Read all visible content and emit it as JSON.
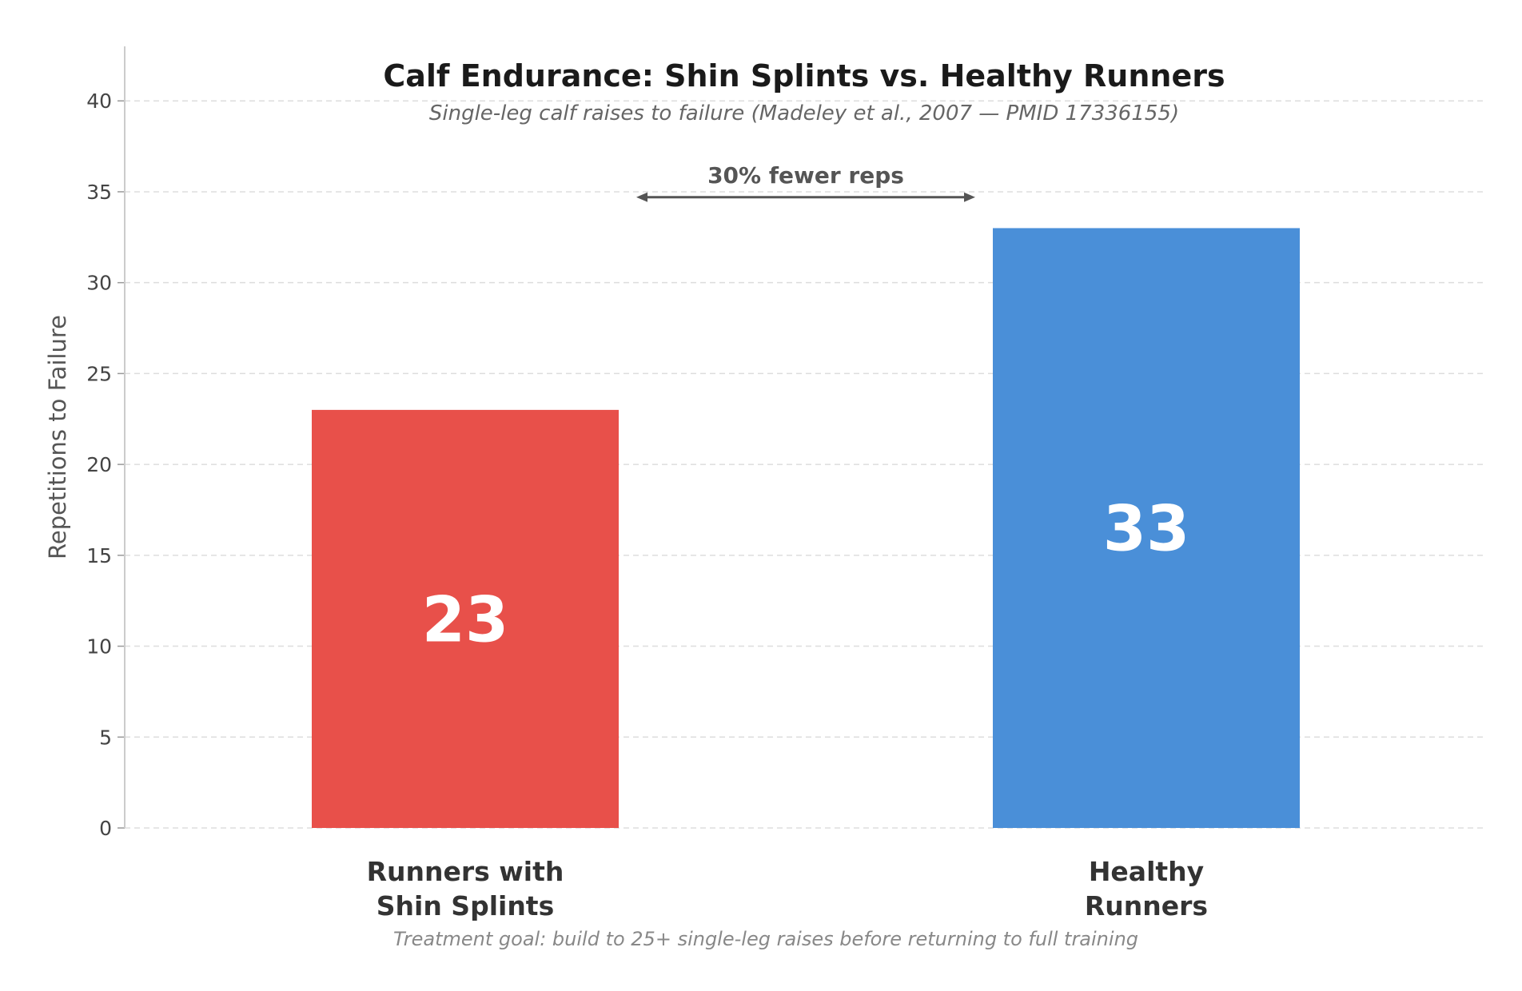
{
  "chart_data": {
    "type": "bar",
    "title": "Calf Endurance: Shin Splints vs. Healthy Runners",
    "subtitle": "Single-leg calf raises to failure (Madeley et al., 2007 — PMID 17336155)",
    "ylabel": "Repetitions to Failure",
    "xlabel": "",
    "categories": [
      [
        "Runners with",
        "Shin Splints"
      ],
      [
        "Healthy",
        "Runners"
      ]
    ],
    "values": [
      23,
      33
    ],
    "value_labels": [
      "23",
      "33"
    ],
    "bar_colors": [
      "#e8504a",
      "#4a8fd8"
    ],
    "ylim": [
      0,
      43
    ],
    "yticks": [
      0,
      5,
      10,
      15,
      20,
      25,
      30,
      35,
      40
    ],
    "grid": true,
    "annotation": {
      "text": "30% fewer reps",
      "from_category": 0,
      "to_category": 1
    },
    "footnote": "Treatment goal: build to 25+ single-leg raises before returning to full training"
  }
}
